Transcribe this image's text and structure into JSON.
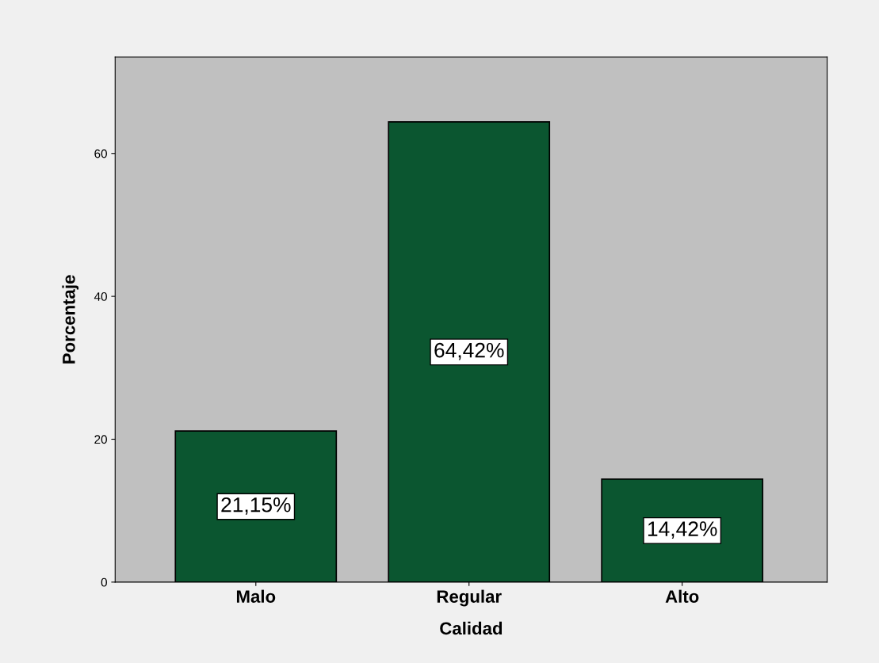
{
  "chart_data": {
    "type": "bar",
    "xlabel": "Calidad",
    "ylabel": "Porcentaje",
    "categories": [
      "Malo",
      "Regular",
      "Alto"
    ],
    "values": [
      21.15,
      64.42,
      14.42
    ],
    "value_labels": [
      "21,15%",
      "64,42%",
      "14,42%"
    ],
    "color": "#0b5630",
    "ylim": [
      0,
      73.5
    ],
    "yticks": [
      0,
      20,
      40,
      60
    ],
    "grid": false
  }
}
